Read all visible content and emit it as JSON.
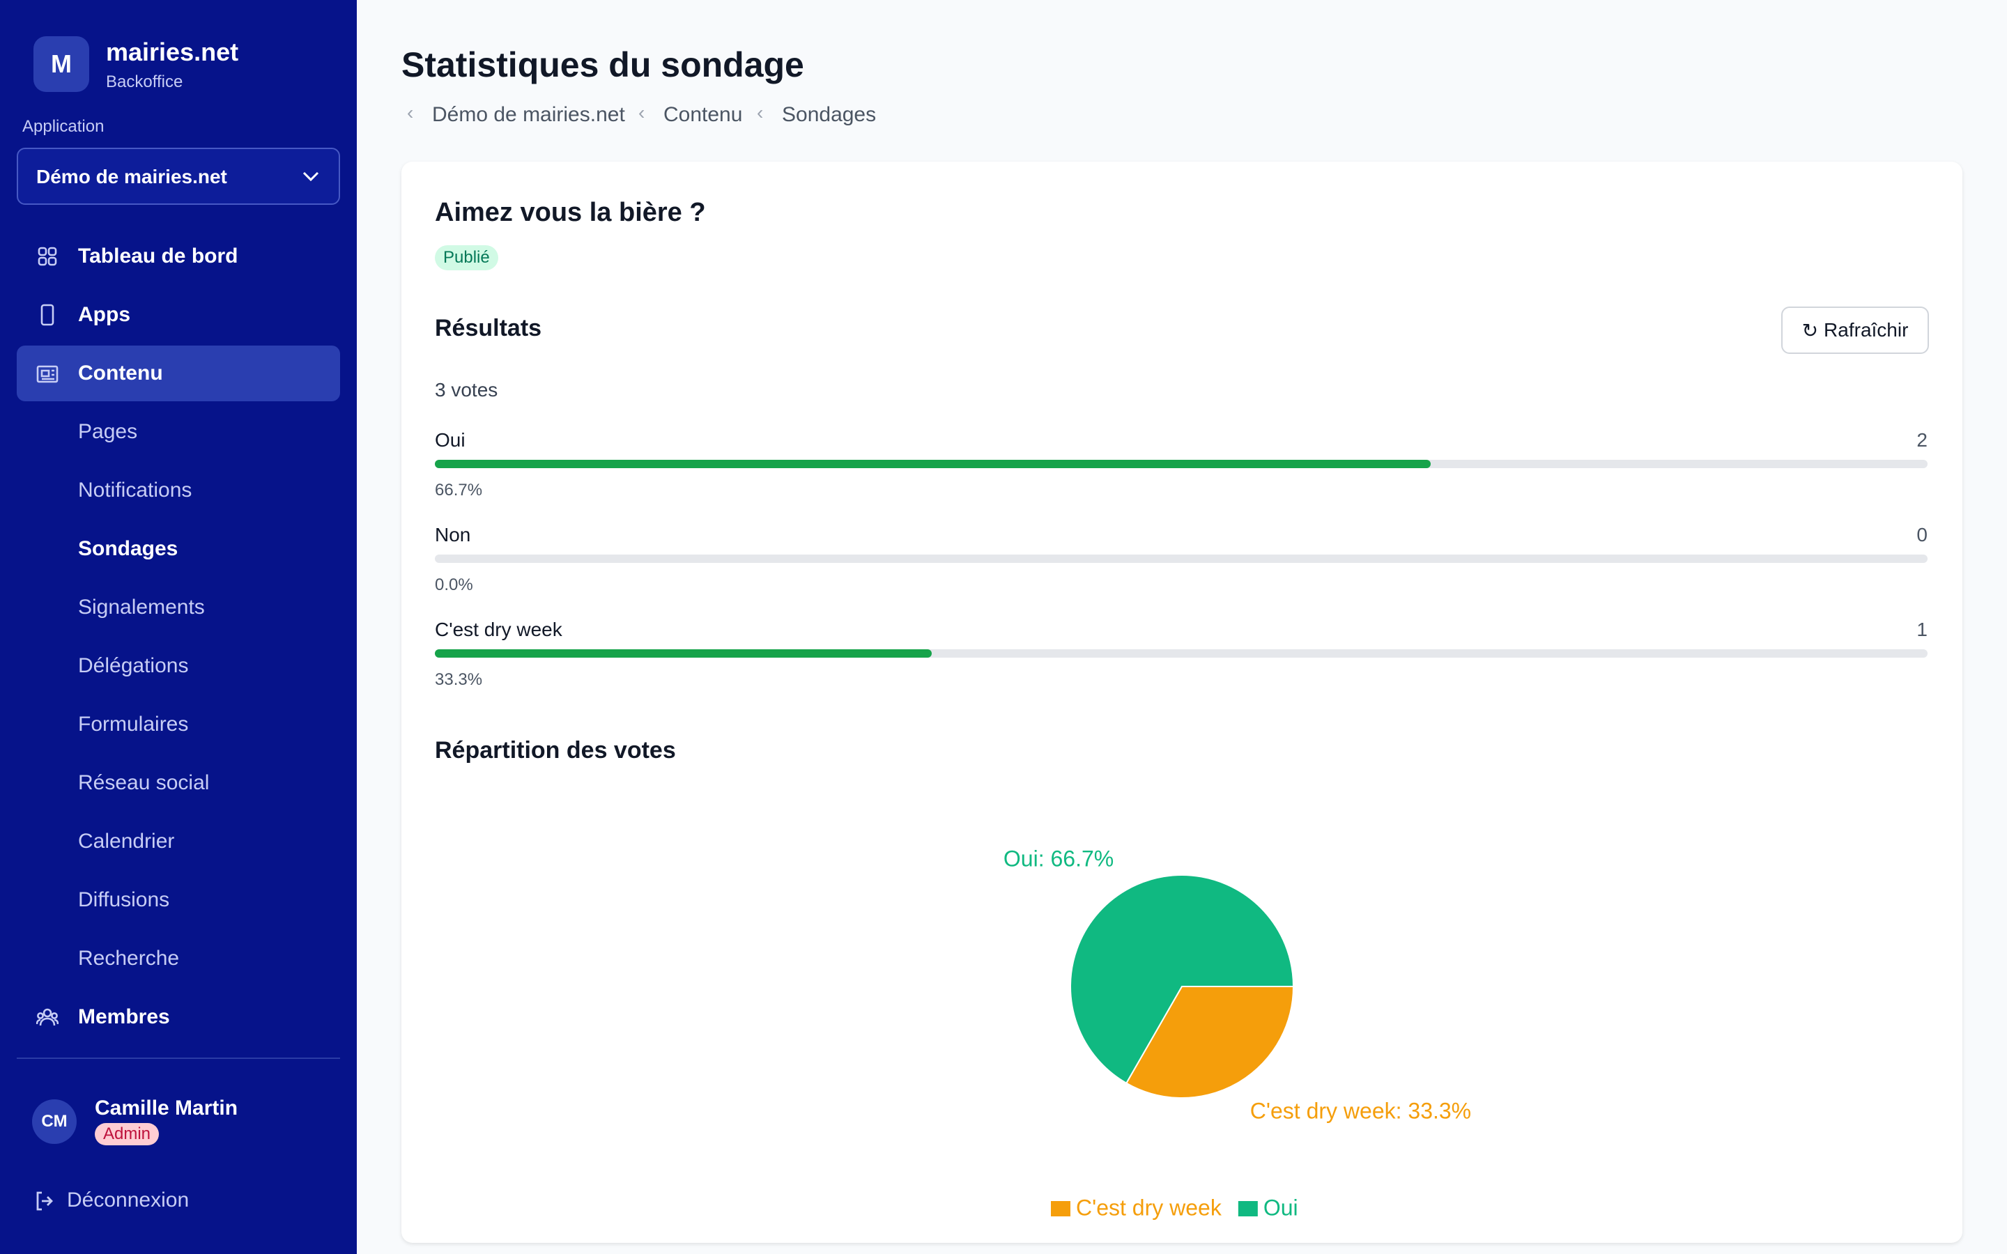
{
  "sidebar": {
    "logo": "M",
    "brand": "mairies.net",
    "subtitle": "Backoffice",
    "app_label": "Application",
    "app_select": "Démo de mairies.net",
    "nav": [
      "Tableau de bord",
      "Apps",
      "Contenu",
      "Pages",
      "Notifications",
      "Sondages",
      "Signalements",
      "Délégations",
      "Formulaires",
      "Réseau social",
      "Calendrier",
      "Diffusions",
      "Recherche",
      "Membres"
    ],
    "user": {
      "initials": "CM",
      "name": "Camille Martin",
      "role": "Admin"
    },
    "logout": "Déconnexion"
  },
  "header": {
    "title": "Statistiques du sondage",
    "breadcrumb": [
      "Démo de mairies.net",
      "Contenu",
      "Sondages"
    ]
  },
  "poll": {
    "question": "Aimez vous la bière ?",
    "status": "Publié",
    "results_title": "Résultats",
    "refresh": "Rafraîchir",
    "votes": "3 votes",
    "items": [
      {
        "label": "Oui",
        "count": 2,
        "percent": 66.7,
        "percent_label": "66.7%"
      },
      {
        "label": "Non",
        "count": 0,
        "percent": 0,
        "percent_label": "0.0%"
      },
      {
        "label": "C'est dry week",
        "count": 1,
        "percent": 33.3,
        "percent_label": "33.3%"
      }
    ]
  },
  "chart_data": {
    "type": "pie",
    "title": "Répartition des votes",
    "categories": [
      "C'est dry week",
      "Oui"
    ],
    "values": [
      33.3,
      66.7
    ],
    "value_labels": [
      "C'est dry week: 33.3%",
      "Oui: 66.7%"
    ],
    "colors": [
      "#f59e0b",
      "#10b981"
    ]
  }
}
